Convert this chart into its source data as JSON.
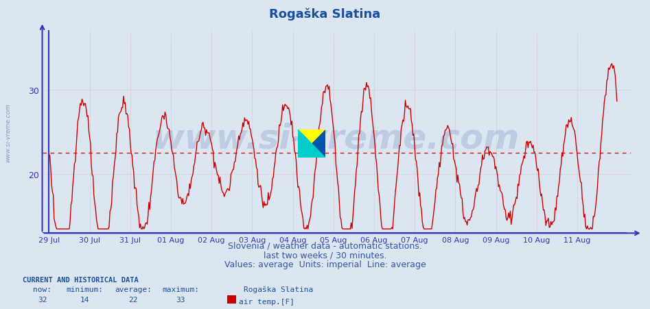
{
  "title": "Rogaška Slatina",
  "title_color": "#1a4f9c",
  "title_fontsize": 13,
  "bg_color": "#dce6f0",
  "plot_bg_color": "#dce6f0",
  "line_color": "#cc0000",
  "line_width": 1.0,
  "avg_line_color": "#cc0000",
  "avg_line_value": 22.5,
  "yaxis_color": "#3333bb",
  "xaxis_color": "#3333bb",
  "grid_color": "#cc8888",
  "grid_alpha": 0.5,
  "grid_style": ":",
  "ylim_min": 13,
  "ylim_max": 37,
  "yticks": [
    20,
    30
  ],
  "watermark_text": "www.si-vreme.com",
  "watermark_color": "#3355aa",
  "watermark_alpha": 0.18,
  "watermark_fontsize": 36,
  "side_watermark": "www.si-vreme.com",
  "subtitle1": "Slovenia / weather data - automatic stations.",
  "subtitle2": "last two weeks / 30 minutes.",
  "subtitle3": "Values: average  Units: imperial  Line: average",
  "subtitle_color": "#3355aa",
  "subtitle_fontsize": 9,
  "stats_label": "CURRENT AND HISTORICAL DATA",
  "stats_now": "32",
  "stats_min": "14",
  "stats_avg": "22",
  "stats_max": "33",
  "stats_station": "Rogaška Slatina",
  "stats_series": "air temp.[F]",
  "stats_color": "#1a4f9c",
  "legend_color": "#cc0000",
  "xticklabels": [
    "29 Jul",
    "30 Jul",
    "31 Jul",
    "01 Aug",
    "02 Aug",
    "03 Aug",
    "04 Aug",
    "05 Aug",
    "06 Aug",
    "07 Aug",
    "08 Aug",
    "09 Aug",
    "10 Aug",
    "11 Aug"
  ],
  "num_points": 672
}
